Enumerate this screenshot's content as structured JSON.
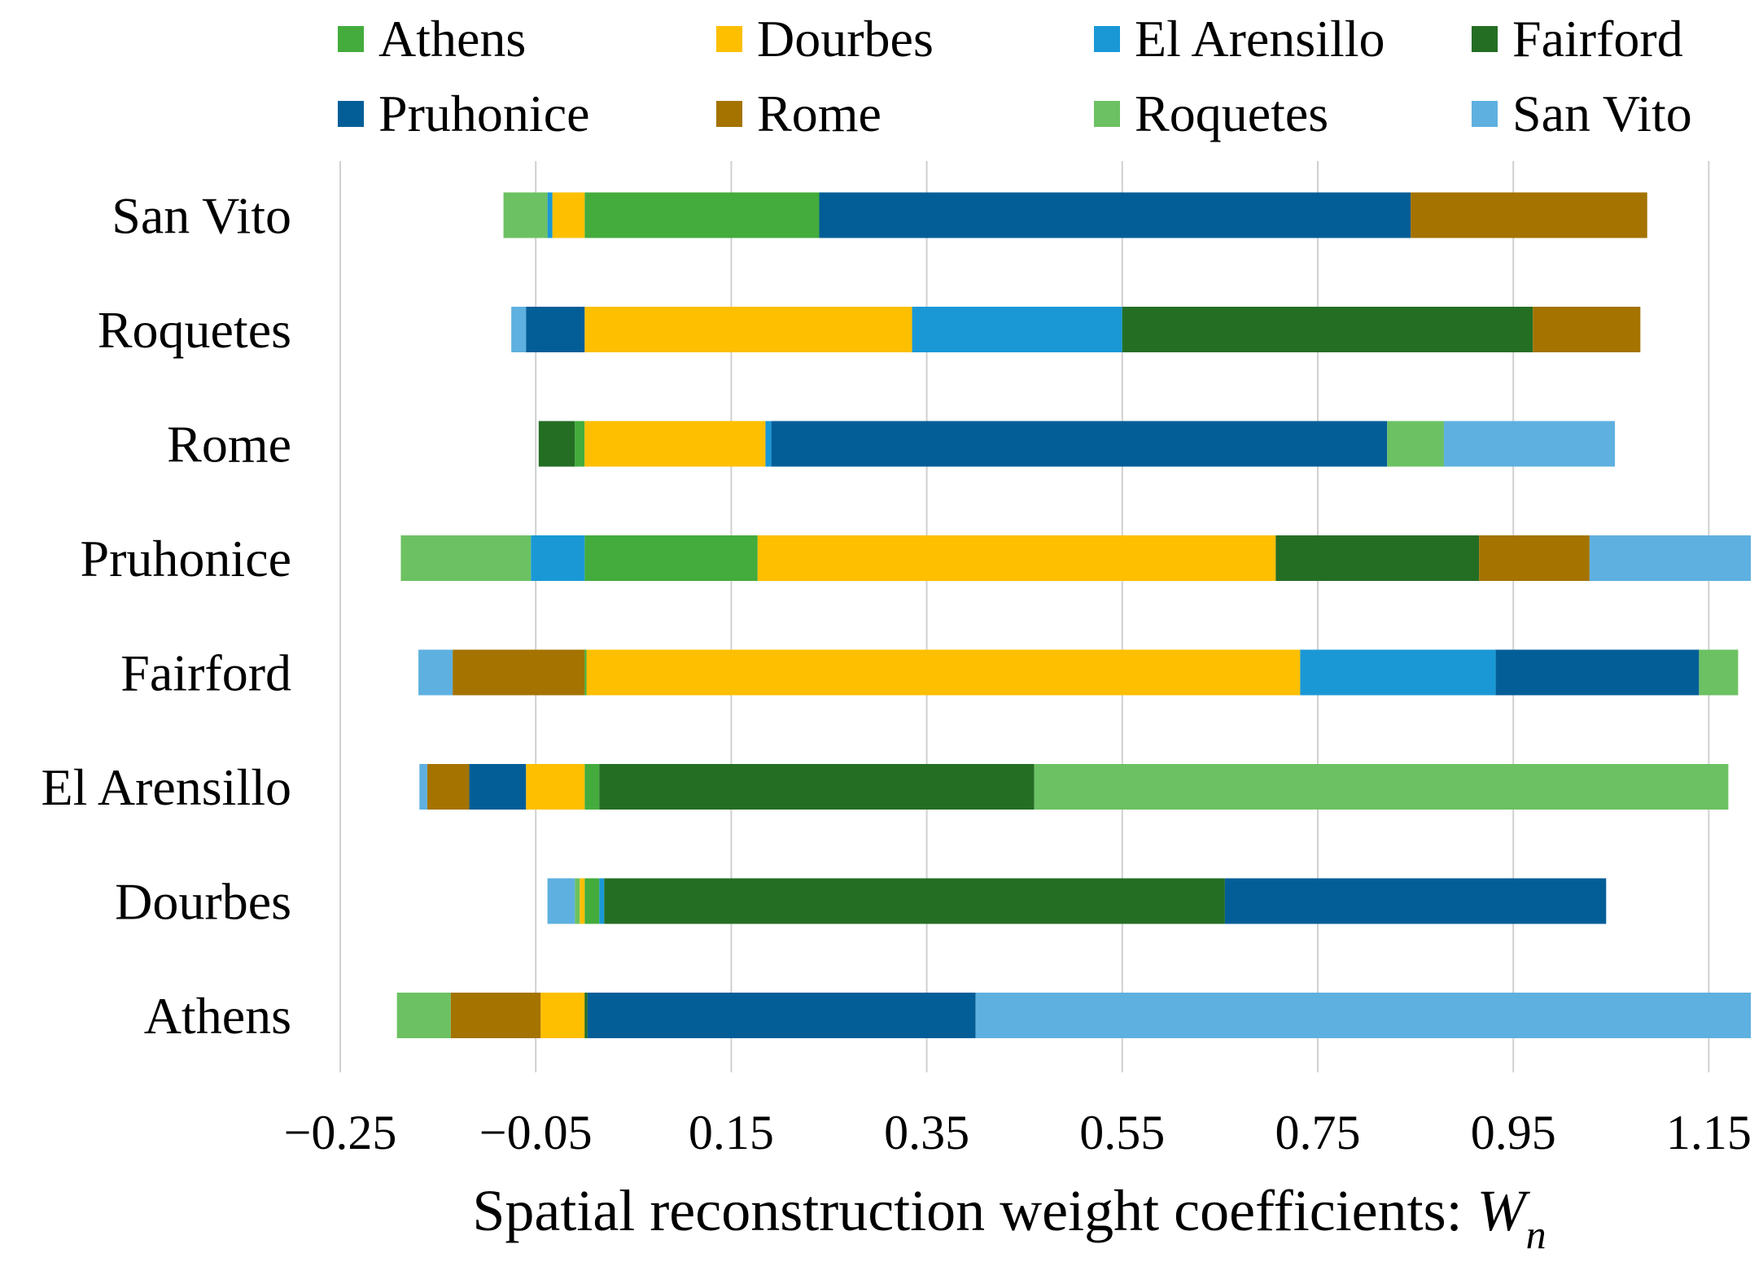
{
  "chart_data": {
    "type": "bar",
    "orientation": "horizontal",
    "stacked": true,
    "title": "",
    "xlabel": "Spatial reconstruction weight coefficients: ",
    "xlabel_symbol": "W",
    "xlabel_subscript": "n",
    "ylabel": "",
    "xlim": [
      -0.25,
      1.2
    ],
    "xticks": [
      -0.25,
      -0.05,
      0.15,
      0.35,
      0.55,
      0.75,
      0.95,
      1.15
    ],
    "xtick_labels": [
      "−0.25",
      "−0.05",
      "0.15",
      "0.35",
      "0.55",
      "0.75",
      "0.95",
      "1.15"
    ],
    "grid": true,
    "legend_position": "top",
    "categories": [
      "Athens",
      "Dourbes",
      "El Arensillo",
      "Fairford",
      "Pruhonice",
      "Rome",
      "Roquetes",
      "San Vito"
    ],
    "series": [
      {
        "name": "Athens",
        "color": "#43AC3C",
        "values": [
          0.0,
          0.015,
          0.015,
          0.002,
          0.177,
          -0.01,
          0.0,
          0.24
        ]
      },
      {
        "name": "Dourbes",
        "color": "#FDBF00",
        "values": [
          -0.045,
          -0.005,
          -0.06,
          0.73,
          0.53,
          0.185,
          0.335,
          -0.033
        ]
      },
      {
        "name": "El Arensillo",
        "color": "#1A98D6",
        "values": [
          0.0,
          0.005,
          0.0,
          0.2,
          -0.055,
          0.006,
          0.215,
          -0.005
        ]
      },
      {
        "name": "Fairford",
        "color": "#246E24",
        "values": [
          0.003,
          0.635,
          0.445,
          0.0,
          0.208,
          -0.037,
          0.42,
          0.0
        ]
      },
      {
        "name": "Pruhonice",
        "color": "#035E98",
        "values": [
          0.397,
          0.39,
          -0.058,
          0.208,
          0.0,
          0.63,
          -0.06,
          0.605
        ]
      },
      {
        "name": "Rome",
        "color": "#A47300",
        "values": [
          -0.092,
          0.0,
          -0.043,
          -0.135,
          0.113,
          0.0,
          0.11,
          0.242
        ]
      },
      {
        "name": "Roquetes",
        "color": "#6CC162",
        "values": [
          -0.055,
          -0.005,
          0.71,
          0.04,
          -0.133,
          0.058,
          0.0,
          -0.045
        ]
      },
      {
        "name": "San Vito",
        "color": "#5EB0E0",
        "values": [
          0.793,
          -0.028,
          -0.008,
          -0.035,
          0.165,
          0.175,
          -0.015,
          0.0
        ]
      }
    ]
  }
}
